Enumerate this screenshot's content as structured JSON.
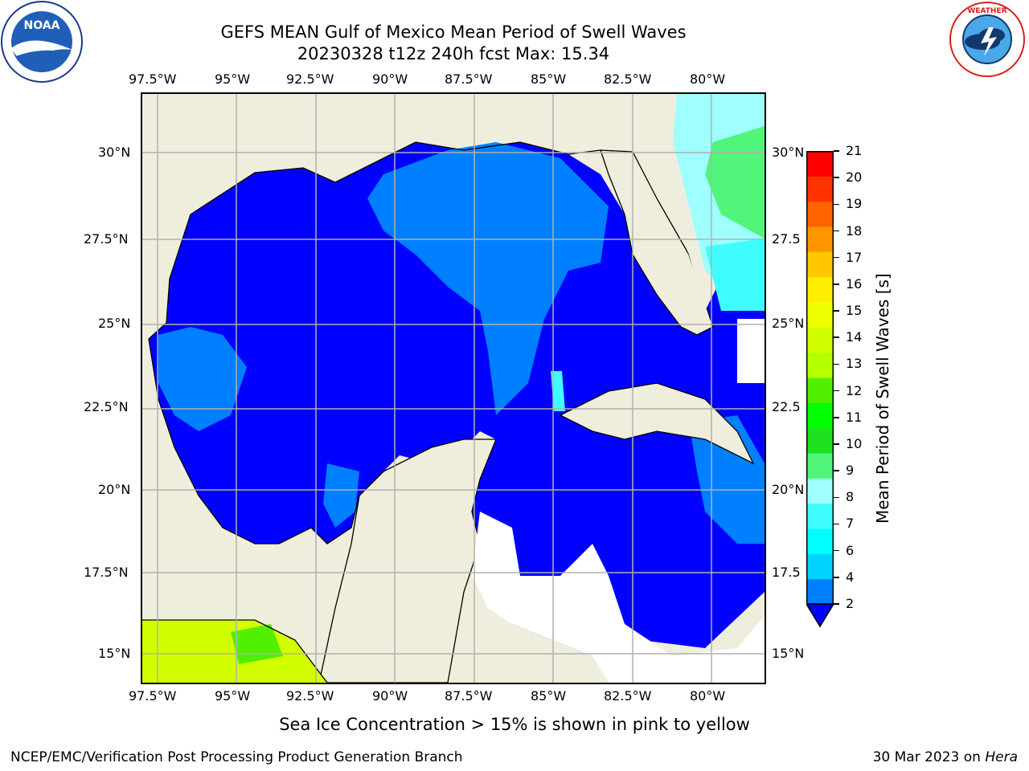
{
  "header": {
    "title_line1": "GEFS MEAN Gulf of Mexico Mean Period of Swell Waves",
    "title_line2": "20230328 t12z 240h fcst   Max: 15.34"
  },
  "logos": {
    "left": "NOAA",
    "left_ring": "NATIONAL OCEANIC AND ATMOSPHERIC ADMINISTRATION · U.S. DEPARTMENT OF COMMERCE",
    "right_ring": "NATIONAL WEATHER SERVICE"
  },
  "map": {
    "lon_ticks": [
      "97.5°W",
      "95°W",
      "92.5°W",
      "90°W",
      "87.5°W",
      "85°W",
      "82.5°W",
      "80°W"
    ],
    "lat_ticks_left": [
      "30°N",
      "27.5°N",
      "25°N",
      "22.5°N",
      "20°N",
      "17.5°N",
      "15°N"
    ],
    "lat_ticks_right": [
      "30°N",
      "27.5",
      "25°N",
      "22.5",
      "20°N",
      "17.5",
      "15°N"
    ],
    "land_color": "#efeedc",
    "extent": {
      "lon_min": -98,
      "lon_max": -78.3,
      "lat_min": 14.1,
      "lat_max": 31.7
    }
  },
  "colorbar": {
    "title": "Mean Period of Swell Waves [s]",
    "levels": [
      "2",
      "4",
      "6",
      "7",
      "8",
      "9",
      "10",
      "11",
      "12",
      "13",
      "14",
      "15",
      "16",
      "17",
      "18",
      "19",
      "20",
      "21"
    ],
    "colors": [
      "#0080ff",
      "#00d2ff",
      "#00ffff",
      "#3ffdfd",
      "#9ffefe",
      "#50f57a",
      "#1ee01e",
      "#00ff00",
      "#50f000",
      "#b4ff00",
      "#d2ff00",
      "#f0ff00",
      "#ffee00",
      "#ffc800",
      "#ff9600",
      "#ff6400",
      "#ff3200",
      "#ff0000"
    ],
    "underflow_color": "#0000ff"
  },
  "footer": {
    "note": "Sea Ice Concentration > 15% is shown in pink to yellow",
    "left": "NCEP/EMC/Verification Post Processing Product Generation Branch",
    "right_date": "30 Mar 2023 on ",
    "right_host": "Hera"
  }
}
